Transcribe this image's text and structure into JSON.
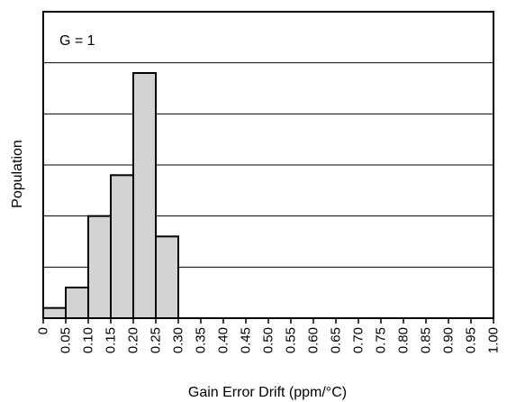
{
  "chart_data": {
    "type": "bar",
    "annotation": "G = 1",
    "xlabel": "Gain Error Drift (ppm/°C)",
    "ylabel": "Population",
    "x_ticks": [
      "0",
      "0.05",
      "0.10",
      "0.15",
      "0.20",
      "0.25",
      "0.30",
      "0.35",
      "0.40",
      "0.45",
      "0.50",
      "0.55",
      "0.60",
      "0.65",
      "0.70",
      "0.75",
      "0.80",
      "0.85",
      "0.90",
      "0.95",
      "1.00"
    ],
    "xlim": [
      0,
      1.0
    ],
    "ylim": [
      0,
      6
    ],
    "grid": true,
    "bins": [
      {
        "start": 0.0,
        "end": 0.05,
        "value": 0.2
      },
      {
        "start": 0.05,
        "end": 0.1,
        "value": 0.6
      },
      {
        "start": 0.1,
        "end": 0.15,
        "value": 2.0
      },
      {
        "start": 0.15,
        "end": 0.2,
        "value": 2.8
      },
      {
        "start": 0.2,
        "end": 0.25,
        "value": 4.8
      },
      {
        "start": 0.25,
        "end": 0.3,
        "value": 1.6
      }
    ],
    "bar_color": "#d3d3d3"
  }
}
